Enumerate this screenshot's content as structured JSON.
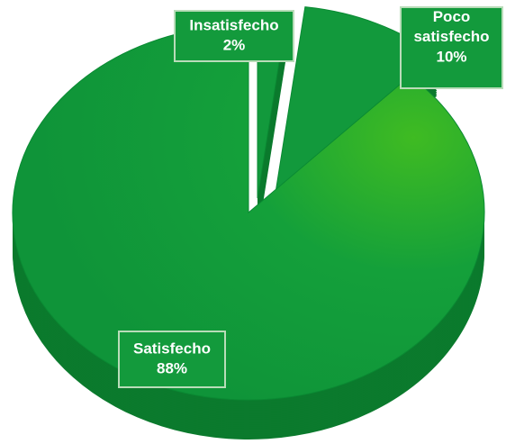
{
  "chart_data": {
    "type": "pie",
    "categories": [
      "Insatisfecho",
      "Poco satisfecho",
      "Satisfecho"
    ],
    "values": [
      2,
      10,
      88
    ],
    "value_labels": [
      "2%",
      "10%",
      "88%"
    ],
    "colors": [
      "#12993c",
      "#12993c",
      "#12993c"
    ]
  }
}
